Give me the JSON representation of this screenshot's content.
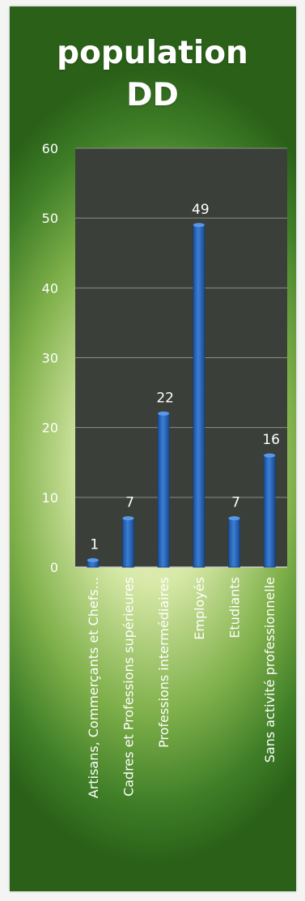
{
  "chart_data": {
    "type": "bar",
    "title_lines": [
      "population",
      "DD"
    ],
    "categories": [
      "Artisans, Commerçants et Chefs...",
      "Cadres et Professions supérieures",
      "Professions intermédiaires",
      "Employés",
      "Etudiants",
      "Sans activité professionnelle"
    ],
    "values": [
      1,
      7,
      22,
      49,
      7,
      16
    ],
    "data_labels": [
      "1",
      "7",
      "22",
      "49",
      "7",
      "16"
    ],
    "ylim": [
      0,
      60
    ],
    "yticks": [
      "0",
      "10",
      "20",
      "30",
      "40",
      "50",
      "60"
    ],
    "grid": true,
    "legend": "none",
    "colors": {
      "plot_background": "#3a3f39",
      "bar": "#2a66b8",
      "gridline": "#8a8f86",
      "text": "#ffffff"
    }
  }
}
